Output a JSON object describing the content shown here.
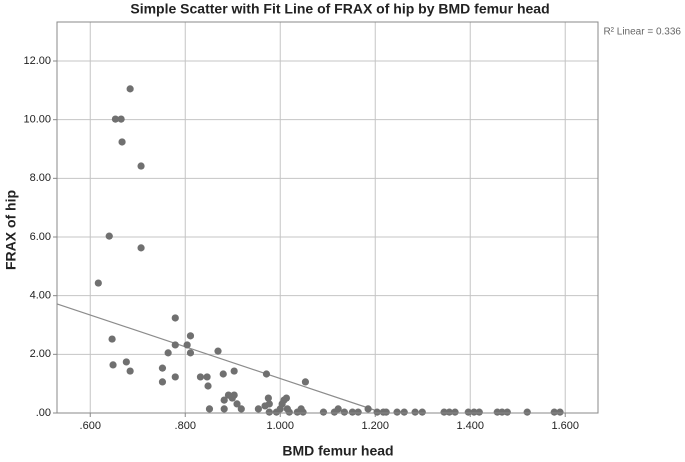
{
  "chart_data": {
    "type": "scatter",
    "title": "Simple Scatter with Fit Line of FRAX of hip by BMD femur head",
    "x_label": "BMD femur head",
    "y_label": "FRAX of hip",
    "annotation": "R² Linear = 0.336",
    "color": "#707070",
    "fit_color": "#8c8c8c",
    "grid": true,
    "xlim": [
      0.53,
      1.669
    ],
    "ylim": [
      0,
      13.33
    ],
    "xticks": [
      {
        "value": 0.6,
        "label": ".600"
      },
      {
        "value": 0.8,
        "label": ".800"
      },
      {
        "value": 1.0,
        "label": "1.000"
      },
      {
        "value": 1.2,
        "label": "1.200"
      },
      {
        "value": 1.4,
        "label": "1.400"
      },
      {
        "value": 1.6,
        "label": "1.600"
      }
    ],
    "yticks": [
      {
        "value": 0,
        "label": ".00"
      },
      {
        "value": 2,
        "label": "2.00"
      },
      {
        "value": 4,
        "label": "4.00"
      },
      {
        "value": 6,
        "label": "6.00"
      },
      {
        "value": 8,
        "label": "8.00"
      },
      {
        "value": 10,
        "label": "10.00"
      },
      {
        "value": 12,
        "label": "12.00"
      }
    ],
    "fit_line": {
      "x": [
        0.53,
        1.217
      ],
      "y": [
        3.72,
        0
      ]
    },
    "x": [
      0.617,
      0.64,
      0.653,
      0.665,
      0.667,
      0.684,
      0.707,
      0.707,
      0.646,
      0.648,
      0.676,
      0.684,
      0.752,
      0.752,
      0.764,
      0.779,
      0.779,
      0.779,
      0.804,
      0.811,
      0.811,
      0.832,
      0.846,
      0.848,
      0.851,
      0.869,
      0.88,
      0.882,
      0.882,
      0.891,
      0.899,
      0.903,
      0.903,
      0.909,
      0.918,
      0.954,
      0.968,
      0.971,
      0.975,
      0.977,
      0.977,
      0.992,
      1.0,
      1.004,
      1.008,
      1.013,
      1.015,
      1.019,
      1.036,
      1.044,
      1.048,
      1.053,
      1.091,
      1.114,
      1.122,
      1.135,
      1.152,
      1.164,
      1.185,
      1.204,
      1.217,
      1.223,
      1.246,
      1.261,
      1.284,
      1.299,
      1.345,
      1.356,
      1.368,
      1.396,
      1.408,
      1.419,
      1.457,
      1.467,
      1.478,
      1.52,
      1.577,
      1.589
    ],
    "values": [
      4.43,
      6.03,
      10.02,
      10.02,
      9.24,
      11.05,
      8.42,
      5.63,
      2.52,
      1.64,
      1.74,
      1.43,
      1.53,
      1.06,
      2.05,
      3.24,
      2.32,
      1.23,
      2.32,
      2.63,
      2.05,
      1.23,
      1.23,
      0.92,
      0.14,
      2.11,
      1.33,
      0.44,
      0.14,
      0.61,
      0.51,
      0.61,
      1.43,
      0.31,
      0.14,
      0.14,
      0.24,
      1.33,
      0.51,
      0.31,
      0.03,
      0.03,
      0.14,
      0.31,
      0.44,
      0.51,
      0.14,
      0.03,
      0.03,
      0.14,
      0.03,
      1.06,
      0.03,
      0.03,
      0.14,
      0.03,
      0.03,
      0.03,
      0.14,
      0.03,
      0.03,
      0.03,
      0.03,
      0.03,
      0.03,
      0.03,
      0.03,
      0.03,
      0.03,
      0.03,
      0.03,
      0.03,
      0.03,
      0.03,
      0.03,
      0.03,
      0.03,
      0.03
    ]
  }
}
